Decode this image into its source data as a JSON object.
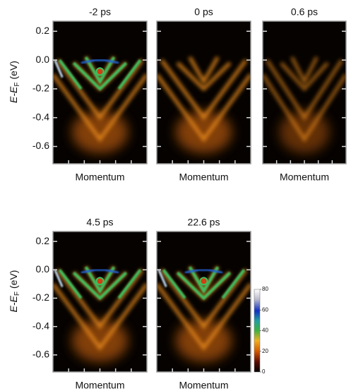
{
  "chart_data": [
    {
      "type": "image",
      "title": "-2 ps",
      "xlabel": "Momentum",
      "ylabel": {
        "text": "E-E",
        "subscript": "F",
        "unit": "(eV)"
      },
      "ylim": [
        -0.72,
        0.27
      ],
      "yticks": [
        0.2,
        {
          "value": 0,
          "label": "0.0"
        },
        -0.2,
        -0.4,
        -0.6
      ]
    },
    {
      "type": "image",
      "title": "0 ps",
      "xlabel": "Momentum",
      "ylim": [
        -0.72,
        0.27
      ],
      "yticks": [
        0.2,
        {
          "value": 0,
          "label": "0.0"
        },
        -0.2,
        -0.4,
        -0.6
      ]
    },
    {
      "type": "image",
      "title": "0.6 ps",
      "xlabel": "Momentum",
      "ylim": [
        -0.72,
        0.27
      ],
      "yticks": [
        0.2,
        {
          "value": 0,
          "label": "0.0"
        },
        -0.2,
        -0.4,
        -0.6
      ]
    },
    {
      "type": "image",
      "title": "4.5 ps",
      "xlabel": "Momentum",
      "ylabel": {
        "text": "E-E",
        "subscript": "F",
        "unit": "(eV)"
      },
      "ylim": [
        -0.72,
        0.27
      ],
      "yticks": [
        0.2,
        {
          "value": 0,
          "label": "0.0"
        },
        -0.2,
        -0.4,
        -0.6
      ]
    },
    {
      "type": "image",
      "title": "22.6 ps",
      "xlabel": "Momentum",
      "ylim": [
        -0.72,
        0.27
      ],
      "yticks": [
        0.2,
        {
          "value": 0,
          "label": "0.0"
        },
        -0.2,
        -0.4,
        -0.6
      ]
    },
    {
      "type": "colorbar",
      "zlim": [
        0,
        80
      ],
      "zticks": [
        0,
        20,
        40,
        60,
        80
      ]
    }
  ]
}
